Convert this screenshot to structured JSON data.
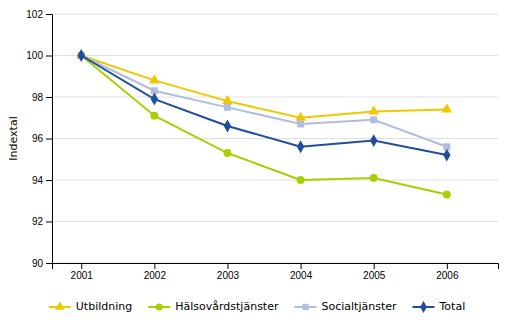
{
  "chart_data": {
    "type": "line",
    "x": [
      2001,
      2002,
      2003,
      2004,
      2005,
      2006
    ],
    "series": [
      {
        "name": "Utbildning",
        "color": "#f0c800",
        "marker": "triangle",
        "values": [
          100.0,
          98.8,
          97.8,
          97.0,
          97.3,
          97.4
        ]
      },
      {
        "name": "Hälsovårdstjänster",
        "color": "#a8d000",
        "marker": "circle",
        "values": [
          100.0,
          97.1,
          95.3,
          94.0,
          94.1,
          93.3
        ]
      },
      {
        "name": "Socialtjänster",
        "color": "#b0bce0",
        "marker": "square",
        "values": [
          100.0,
          98.3,
          97.5,
          96.7,
          96.9,
          95.6
        ]
      },
      {
        "name": "Total",
        "color": "#1f4e9a",
        "marker": "diamond",
        "values": [
          100.0,
          97.9,
          96.6,
          95.6,
          95.9,
          95.2
        ]
      }
    ],
    "ylabel": "Indextal",
    "xlim": [
      2000.6,
      2006.7
    ],
    "ylim": [
      90,
      102
    ],
    "xticks": [
      2001,
      2002,
      2003,
      2004,
      2005,
      2006
    ],
    "yticks": [
      90,
      92,
      94,
      96,
      98,
      100,
      102
    ],
    "grid": true,
    "legend": "bottom"
  }
}
